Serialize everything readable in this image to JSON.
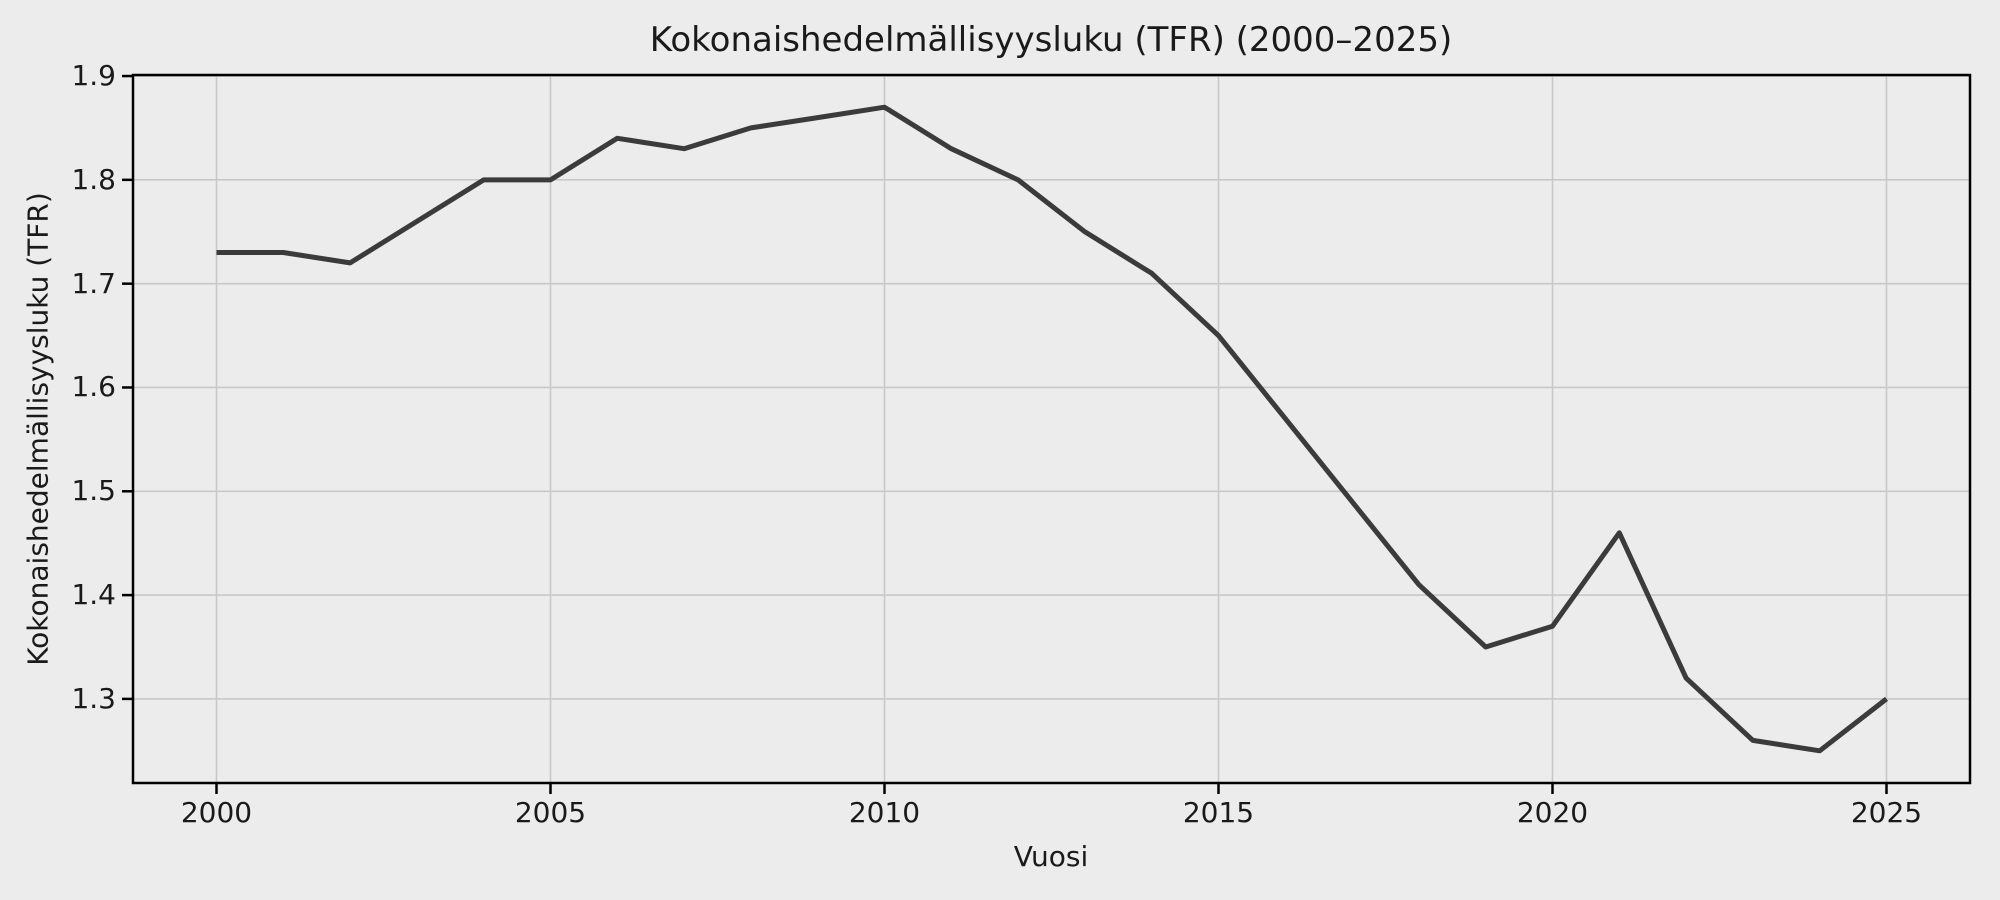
{
  "chart_data": {
    "type": "line",
    "title": "Kokonaishedelmällisyysluku (TFR) (2000–2025)",
    "xlabel": "Vuosi",
    "ylabel": "Kokonaishedelmällisyysluku (TFR)",
    "x": [
      2000,
      2001,
      2002,
      2003,
      2004,
      2005,
      2006,
      2007,
      2008,
      2009,
      2010,
      2011,
      2012,
      2013,
      2014,
      2015,
      2016,
      2017,
      2018,
      2019,
      2020,
      2021,
      2022,
      2023,
      2024,
      2025
    ],
    "series": [
      {
        "name": "TFR",
        "values": [
          1.73,
          1.73,
          1.72,
          1.76,
          1.8,
          1.8,
          1.84,
          1.83,
          1.85,
          1.86,
          1.87,
          1.83,
          1.8,
          1.75,
          1.71,
          1.65,
          1.57,
          1.49,
          1.41,
          1.35,
          1.37,
          1.46,
          1.32,
          1.26,
          1.25,
          1.3
        ]
      }
    ],
    "xticks": [
      2000,
      2005,
      2010,
      2015,
      2020,
      2025
    ],
    "yticks": [
      1.3,
      1.4,
      1.5,
      1.6,
      1.7,
      1.8,
      1.9
    ],
    "xlim": [
      1998.75,
      2026.25
    ],
    "ylim": [
      1.219,
      1.901
    ],
    "grid": true,
    "legend_position": "none",
    "colors": {
      "line": "#3b3b3b",
      "figure_background": "#ececec",
      "axes_background": "#ececec",
      "grid": "#c8c8c8",
      "spine": "#000000",
      "text": "#1a1a1a"
    }
  }
}
